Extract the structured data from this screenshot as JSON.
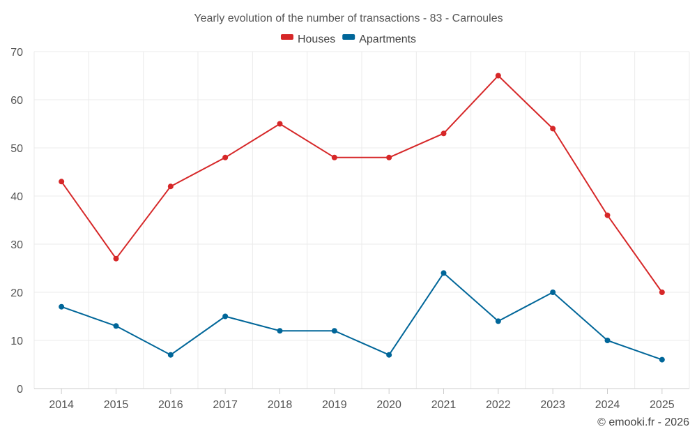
{
  "chart_data": {
    "type": "line",
    "title": "Yearly evolution of the number of transactions - 83 - Carnoules",
    "xlabel": "",
    "ylabel": "",
    "categories": [
      "2014",
      "2015",
      "2016",
      "2017",
      "2018",
      "2019",
      "2020",
      "2021",
      "2022",
      "2023",
      "2024",
      "2025"
    ],
    "ylim": [
      0,
      70
    ],
    "yticks": [
      0,
      10,
      20,
      30,
      40,
      50,
      60,
      70
    ],
    "grid": true,
    "legend_position": "top-center",
    "series": [
      {
        "name": "Houses",
        "color": "#d62728",
        "values": [
          43,
          27,
          42,
          48,
          55,
          48,
          48,
          53,
          65,
          54,
          36,
          20
        ]
      },
      {
        "name": "Apartments",
        "color": "#006699",
        "values": [
          17,
          13,
          7,
          15,
          12,
          12,
          7,
          24,
          14,
          20,
          10,
          6
        ]
      }
    ]
  },
  "credit": "© emooki.fr - 2026"
}
